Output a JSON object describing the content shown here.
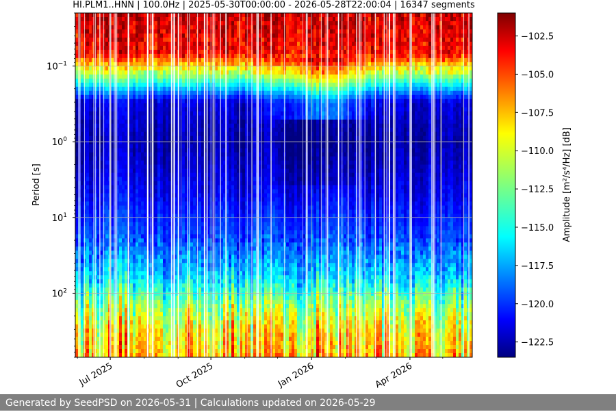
{
  "chart_data": {
    "type": "heatmap",
    "title": "HI.PLM1..HNN | 100.0Hz | 2025-05-30T00:00:00 - 2026-05-28T22:00:04 | 16347 segments",
    "xlabel": "",
    "ylabel": "Period [s]",
    "x_range": [
      "2025-05-30",
      "2026-05-28"
    ],
    "x_ticks": [
      {
        "date": "2025-07-01",
        "label": "Jul 2025"
      },
      {
        "date": "2025-10-01",
        "label": "Oct 2025"
      },
      {
        "date": "2026-01-01",
        "label": "Jan 2026"
      },
      {
        "date": "2026-04-01",
        "label": "Apr 2026"
      }
    ],
    "y_scale": "log",
    "y_inverted": true,
    "y_range": [
      0.02,
      700
    ],
    "y_ticks": [
      {
        "value": 0.1,
        "base": "10",
        "exp": "−1"
      },
      {
        "value": 1,
        "base": "10",
        "exp": "0"
      },
      {
        "value": 10,
        "base": "10",
        "exp": "1"
      },
      {
        "value": 100,
        "base": "10",
        "exp": "2"
      }
    ],
    "grid": true,
    "colormap": "jet",
    "colorbar": {
      "label": "Amplitude [m²/s⁴/Hz] [dB]",
      "range": [
        -123.5,
        -101.0
      ],
      "ticks": [
        "-102.5",
        "-105.0",
        "-107.5",
        "-110.0",
        "-112.5",
        "-115.0",
        "-117.5",
        "-120.0",
        "-122.5"
      ]
    },
    "profile": [
      {
        "period": 0.02,
        "db": -102.5
      },
      {
        "period": 0.07,
        "db": -104.0
      },
      {
        "period": 0.1,
        "db": -108.5
      },
      {
        "period": 0.16,
        "db": -114.0
      },
      {
        "period": 0.3,
        "db": -121.5
      },
      {
        "period": 1,
        "db": -122.5
      },
      {
        "period": 5,
        "db": -121.0
      },
      {
        "period": 20,
        "db": -119.0
      },
      {
        "period": 60,
        "db": -116.0
      },
      {
        "period": 150,
        "db": -111.5
      },
      {
        "period": 300,
        "db": -109.0
      },
      {
        "period": 700,
        "db": -107.5
      }
    ]
  },
  "footer": {
    "text": "Generated by SeedPSD on 2026-05-31 | Calculations updated on 2026-05-29"
  }
}
